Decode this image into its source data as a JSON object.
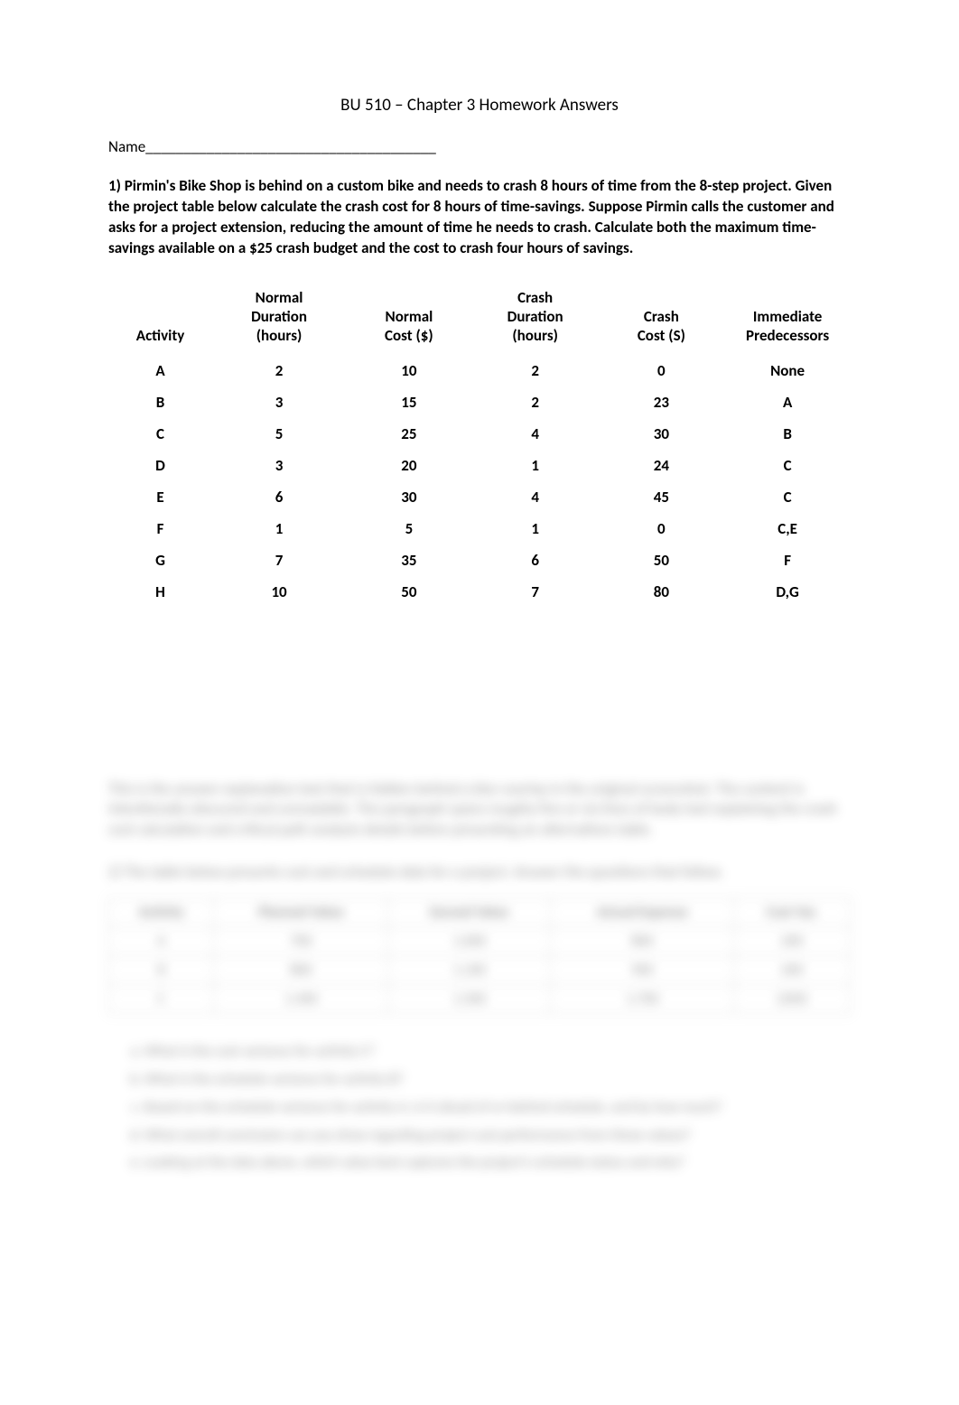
{
  "doc": {
    "title": "BU 510 – Chapter 3 Homework Answers",
    "name_label": "Name______________________________________",
    "question1": "1) Pirmin's Bike Shop is behind on a custom bike and needs to crash 8 hours of time from the 8-step project. Given the project table below calculate the crash cost for 8 hours of time-savings. Suppose Pirmin calls the customer and asks for a project extension, reducing the amount of time he needs to crash. Calculate both the maximum time-savings available on a $25 crash budget and the cost to crash four hours of savings."
  },
  "table": {
    "headers": {
      "activity": "Activity",
      "normal_duration": "Normal Duration (hours)",
      "normal_cost": "Normal Cost ($)",
      "crash_duration": "Crash Duration (hours)",
      "crash_cost": "Crash Cost (S)",
      "predecessors": "Immediate Predecessors"
    },
    "rows": [
      {
        "activity": "A",
        "ndur": "2",
        "ncost": "10",
        "cdur": "2",
        "ccost": "0",
        "pred": "None"
      },
      {
        "activity": "B",
        "ndur": "3",
        "ncost": "15",
        "cdur": "2",
        "ccost": "23",
        "pred": "A"
      },
      {
        "activity": "C",
        "ndur": "5",
        "ncost": "25",
        "cdur": "4",
        "ccost": "30",
        "pred": "B"
      },
      {
        "activity": "D",
        "ndur": "3",
        "ncost": "20",
        "cdur": "1",
        "ccost": "24",
        "pred": "C"
      },
      {
        "activity": "E",
        "ndur": "6",
        "ncost": "30",
        "cdur": "4",
        "ccost": "45",
        "pred": "C"
      },
      {
        "activity": "F",
        "ndur": "1",
        "ncost": "5",
        "cdur": "1",
        "ccost": "0",
        "pred": "C,E"
      },
      {
        "activity": "G",
        "ndur": "7",
        "ncost": "35",
        "cdur": "6",
        "ccost": "50",
        "pred": "F"
      },
      {
        "activity": "H",
        "ndur": "10",
        "ncost": "50",
        "cdur": "7",
        "ccost": "80",
        "pred": "D,G"
      }
    ]
  },
  "locked": {
    "para": "This is the answer explanation text that is hidden behind a blur overlay in the original screenshot. The content is intentionally obscured and unreadable. The paragraph spans roughly five or six lines of body text explaining the crash cost calculation and critical path analysis details before presenting an alternatives table.",
    "q2": "2) The table below presents cost and schedule data for a project. Answer the questions that follow.",
    "table_headers": [
      "Activity",
      "Planned Value",
      "Earned Value",
      "Actual Expense",
      "Cost Var."
    ],
    "table_rows": [
      [
        "A",
        "700",
        "1,000",
        "800",
        "200"
      ],
      [
        "B",
        "800",
        "1,100",
        "900",
        "200"
      ],
      [
        "C",
        "1,400",
        "1,500",
        "1,700",
        "(200)"
      ]
    ],
    "list": [
      "What is the cost variance for activity C?",
      "What is the schedule variance for activity B?",
      "Based on the schedule variance for activity A, is it ahead of or behind schedule, and by how much?",
      "What overall conclusion can you draw regarding project cost performance from these values?",
      "Looking at the data above, which value best captures the project's schedule status and why?"
    ]
  }
}
